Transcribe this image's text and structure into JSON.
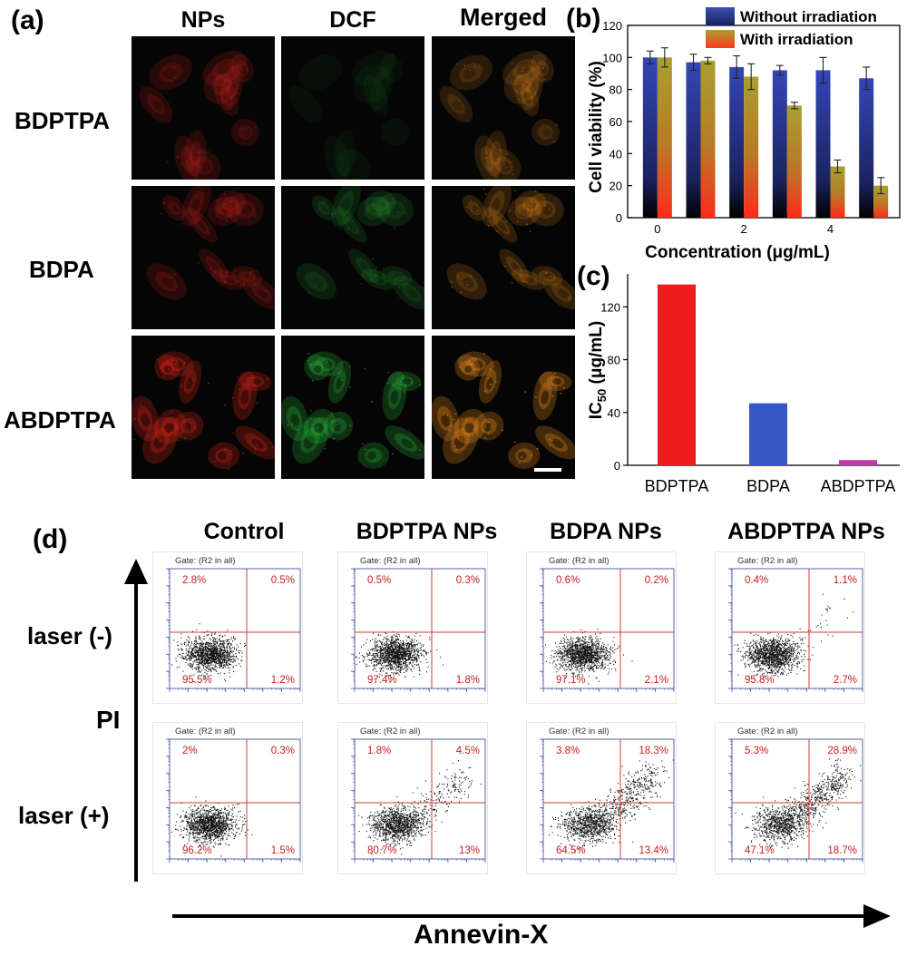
{
  "panel_a": {
    "label": "(a)",
    "columns": [
      "NPs",
      "DCF",
      "Merged"
    ],
    "rows": [
      "BDPTPA",
      "BDPA",
      "ABDPTPA"
    ],
    "colors": {
      "red": "#e0261c",
      "green": "#2fc040",
      "merged": "#e58a1c"
    },
    "intensity": [
      [
        0.45,
        0.04,
        0.45
      ],
      [
        0.5,
        0.35,
        0.55
      ],
      [
        0.85,
        0.75,
        0.9
      ]
    ]
  },
  "chart_data": [
    {
      "panel": "(b)",
      "type": "bar",
      "categories": [
        "0",
        "",
        "2",
        "",
        "4",
        ""
      ],
      "series": [
        {
          "name": "Without irradiation",
          "values": [
            100,
            97,
            94,
            92,
            92,
            87
          ],
          "errors": [
            4,
            5,
            7,
            3,
            8,
            7
          ]
        },
        {
          "name": "With irradiation",
          "values": [
            100,
            98,
            88,
            70,
            32,
            20
          ],
          "errors": [
            6,
            2,
            8,
            2,
            4,
            5
          ]
        }
      ],
      "xlabel": "Concentration (μg/mL)",
      "ylabel": "Cell viability (%)",
      "ylim": [
        0,
        120
      ],
      "yticks": [
        0,
        20,
        40,
        60,
        80,
        100,
        120
      ],
      "legend_position": "top-right",
      "colors": {
        "Without irradiation": "#3a4fb8",
        "With irradiation": "#a8a030"
      }
    },
    {
      "panel": "(c)",
      "type": "bar",
      "categories": [
        "BDPTPA",
        "BDPA",
        "ABDPTPA"
      ],
      "values": [
        137,
        47,
        4
      ],
      "ylabel_main": "IC",
      "ylabel_sub": "50",
      "ylabel_rest": " (μg/mL)",
      "ylim": [
        0,
        145
      ],
      "yticks": [
        0,
        40,
        80,
        120
      ],
      "colors": [
        "#ee1c1c",
        "#3657c8",
        "#c23ca8"
      ]
    },
    {
      "panel": "(d)",
      "type": "scatter",
      "columns": [
        "Control",
        "BDPTPA NPs",
        "BDPA NPs",
        "ABDPTPA NPs"
      ],
      "rows": [
        "laser (-)",
        "laser (+)"
      ],
      "gate_text": "Gate: (R2 in all)",
      "quadrant_order": [
        "upper-left",
        "upper-right",
        "lower-left",
        "lower-right"
      ],
      "quadrants": [
        [
          [
            "2.8%",
            "0.5%",
            "95.5%",
            "1.2%"
          ],
          [
            "0.5%",
            "0.3%",
            "97.4%",
            "1.8%"
          ],
          [
            "0.6%",
            "0.2%",
            "97.1%",
            "2.1%"
          ],
          [
            "0.4%",
            "1.1%",
            "95.8%",
            "2.7%"
          ]
        ],
        [
          [
            "2%",
            "0.3%",
            "96.2%",
            "1.5%"
          ],
          [
            "1.8%",
            "4.5%",
            "80.7%",
            "13%"
          ],
          [
            "3.8%",
            "18.3%",
            "64.5%",
            "13.4%"
          ],
          [
            "5.3%",
            "28.9%",
            "47.1%",
            "18.7%"
          ]
        ]
      ],
      "y_axis_label": "PI",
      "x_axis_label": "Annevin-X",
      "quadrant_line_color": "#d83a3a",
      "value_color": "#c81e1e"
    }
  ]
}
